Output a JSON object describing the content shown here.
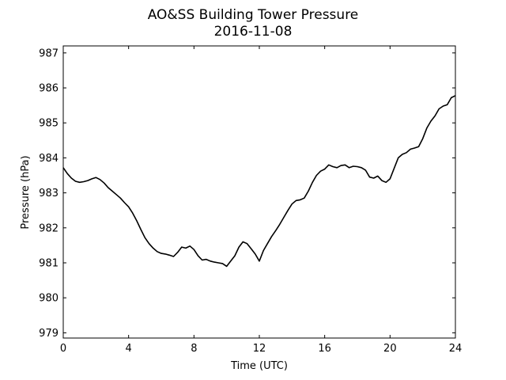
{
  "chart_data": {
    "type": "line",
    "title": "AO&SS Building Tower Pressure",
    "subtitle": "2016-11-08",
    "xlabel": "Time (UTC)",
    "ylabel": "Pressure (hPa)",
    "xlim": [
      0,
      24
    ],
    "ylim": [
      978.85,
      987.2
    ],
    "xticks": [
      0,
      4,
      8,
      12,
      16,
      20,
      24
    ],
    "yticks": [
      979,
      980,
      981,
      982,
      983,
      984,
      985,
      986,
      987
    ],
    "grid": false,
    "legend": "none",
    "series": [
      {
        "color": "#000000",
        "x": [
          0,
          0.25,
          0.5,
          0.75,
          1.0,
          1.25,
          1.5,
          1.75,
          2.0,
          2.25,
          2.5,
          2.75,
          3.0,
          3.25,
          3.5,
          3.75,
          4.0,
          4.25,
          4.5,
          4.75,
          5.0,
          5.25,
          5.5,
          5.75,
          6.0,
          6.25,
          6.5,
          6.75,
          7.0,
          7.25,
          7.5,
          7.75,
          8.0,
          8.25,
          8.5,
          8.75,
          9.0,
          9.25,
          9.5,
          9.75,
          10.0,
          10.25,
          10.5,
          10.75,
          11.0,
          11.25,
          11.5,
          11.75,
          12.0,
          12.25,
          12.5,
          12.75,
          13.0,
          13.25,
          13.5,
          13.75,
          14.0,
          14.25,
          14.5,
          14.75,
          15.0,
          15.25,
          15.5,
          15.75,
          16.0,
          16.25,
          16.5,
          16.75,
          17.0,
          17.25,
          17.5,
          17.75,
          18.0,
          18.25,
          18.5,
          18.75,
          19.0,
          19.25,
          19.5,
          19.75,
          20.0,
          20.25,
          20.5,
          20.75,
          21.0,
          21.25,
          21.5,
          21.75,
          22.0,
          22.25,
          22.5,
          22.75,
          23.0,
          23.25,
          23.5,
          23.75,
          24.0
        ],
        "y": [
          983.72,
          983.55,
          983.42,
          983.33,
          983.3,
          983.32,
          983.35,
          983.4,
          983.44,
          983.38,
          983.28,
          983.15,
          983.05,
          982.95,
          982.85,
          982.72,
          982.6,
          982.42,
          982.2,
          981.95,
          981.72,
          981.55,
          981.42,
          981.32,
          981.27,
          981.25,
          981.22,
          981.18,
          981.3,
          981.45,
          981.42,
          981.48,
          981.38,
          981.2,
          981.08,
          981.1,
          981.05,
          981.02,
          981.0,
          980.98,
          980.9,
          981.05,
          981.2,
          981.45,
          981.6,
          981.55,
          981.4,
          981.25,
          981.05,
          981.35,
          981.55,
          981.75,
          981.92,
          982.1,
          982.3,
          982.5,
          982.68,
          982.78,
          982.8,
          982.85,
          983.05,
          983.3,
          983.5,
          983.62,
          983.68,
          983.8,
          983.75,
          983.72,
          983.78,
          983.8,
          983.72,
          983.76,
          983.75,
          983.72,
          983.65,
          983.45,
          983.42,
          983.48,
          983.35,
          983.3,
          983.4,
          983.7,
          984.0,
          984.1,
          984.15,
          984.25,
          984.28,
          984.32,
          984.55,
          984.85,
          985.05,
          985.2,
          985.4,
          985.48,
          985.52,
          985.72,
          985.78
        ]
      }
    ]
  }
}
